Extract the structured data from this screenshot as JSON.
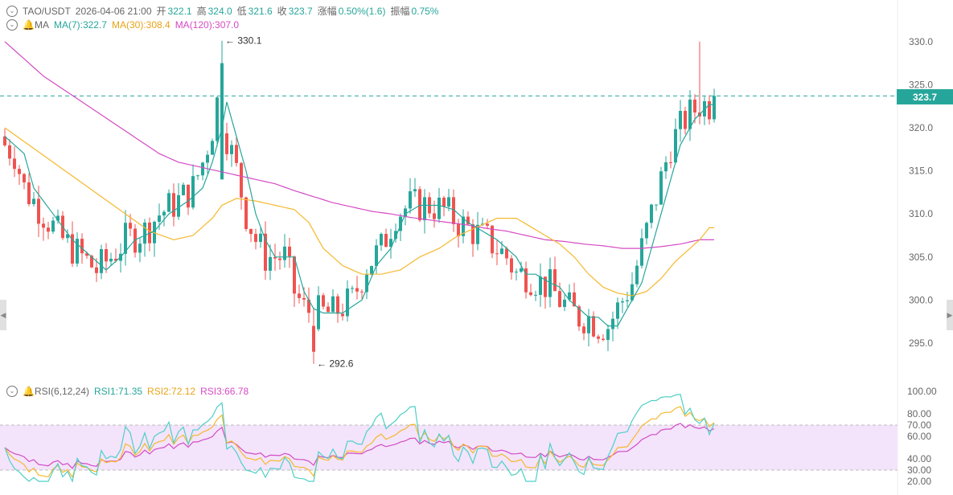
{
  "header": {
    "pair": "TAO/USDT",
    "datetime": "2026-04-06 21:00",
    "open_label": "开",
    "open": "322.1",
    "high_label": "高",
    "high": "324.0",
    "low_label": "低",
    "low": "321.6",
    "close_label": "收",
    "close": "323.7",
    "change_label": "涨幅",
    "change": "0.50%(1.6)",
    "amp_label": "振幅",
    "amp": "0.75%"
  },
  "ma_legend": {
    "label": "MA",
    "ma7": "MA(7):322.7",
    "ma30": "MA(30):308.4",
    "ma120": "MA(120):307.0"
  },
  "rsi_legend": {
    "label": "RSI(6,12,24)",
    "rsi1": "RSI1:71.35",
    "rsi2": "RSI2:72.12",
    "rsi3": "RSI3:66.78"
  },
  "last_price": "323.7",
  "colors": {
    "up": "#26a69a",
    "down": "#ef5350",
    "ma7": "#26a69a",
    "ma30": "#f5b82e",
    "ma120": "#d54ac4",
    "rsi_band": "#f3e4fb"
  },
  "chart_data": [
    {
      "type": "candlestick",
      "y_ticks": [
        "295.0",
        "300.0",
        "305.0",
        "310.0",
        "315.0",
        "320.0",
        "325.0",
        "330.0"
      ],
      "ylim": [
        291,
        332
      ],
      "high_marker": "330.1",
      "low_marker": "292.6",
      "ma_knots": {
        "ma7": [
          [
            0,
            319
          ],
          [
            4,
            317
          ],
          [
            6,
            313
          ],
          [
            10,
            310
          ],
          [
            14,
            307
          ],
          [
            18,
            305
          ],
          [
            21,
            303.5
          ],
          [
            24,
            305
          ],
          [
            27,
            307
          ],
          [
            31,
            308
          ],
          [
            34,
            310
          ],
          [
            38,
            311.5
          ],
          [
            41,
            313
          ],
          [
            43,
            316
          ],
          [
            45,
            320
          ],
          [
            46,
            323
          ],
          [
            48,
            319
          ],
          [
            50,
            315
          ],
          [
            52,
            310
          ],
          [
            54,
            307
          ],
          [
            56,
            305
          ],
          [
            58,
            305
          ],
          [
            60,
            305
          ],
          [
            62,
            301
          ],
          [
            64,
            299
          ],
          [
            66,
            298.5
          ],
          [
            70,
            298.5
          ],
          [
            74,
            300
          ],
          [
            77,
            304
          ],
          [
            80,
            306
          ],
          [
            83,
            310
          ],
          [
            86,
            311
          ],
          [
            90,
            311
          ],
          [
            93,
            310.5
          ],
          [
            96,
            309
          ],
          [
            99,
            308
          ],
          [
            102,
            307
          ],
          [
            104,
            306
          ],
          [
            106,
            305
          ],
          [
            108,
            303
          ],
          [
            110,
            303
          ],
          [
            113,
            302
          ],
          [
            115,
            301.5
          ],
          [
            117,
            300
          ],
          [
            119,
            299
          ],
          [
            121,
            298
          ],
          [
            123,
            298
          ],
          [
            125,
            297
          ],
          [
            127,
            297
          ],
          [
            129,
            299
          ],
          [
            132,
            302
          ],
          [
            134,
            306
          ],
          [
            136,
            310
          ],
          [
            138,
            314
          ],
          [
            140,
            318
          ],
          [
            143,
            321
          ],
          [
            146,
            322.7
          ]
        ],
        "ma30": [
          [
            0,
            320
          ],
          [
            5,
            318
          ],
          [
            10,
            316
          ],
          [
            15,
            314
          ],
          [
            20,
            312
          ],
          [
            25,
            310
          ],
          [
            30,
            308
          ],
          [
            35,
            307
          ],
          [
            39,
            307.5
          ],
          [
            43,
            309.5
          ],
          [
            45,
            311
          ],
          [
            48,
            311.8
          ],
          [
            52,
            311.5
          ],
          [
            56,
            311
          ],
          [
            60,
            310.5
          ],
          [
            63,
            309
          ],
          [
            66,
            306
          ],
          [
            70,
            304
          ],
          [
            74,
            303
          ],
          [
            78,
            303
          ],
          [
            82,
            303.5
          ],
          [
            86,
            305
          ],
          [
            90,
            306
          ],
          [
            94,
            307.5
          ],
          [
            98,
            308.5
          ],
          [
            102,
            309.5
          ],
          [
            106,
            309.5
          ],
          [
            109,
            308.5
          ],
          [
            112,
            307.5
          ],
          [
            115,
            306.5
          ],
          [
            118,
            305
          ],
          [
            121,
            303
          ],
          [
            124,
            301.5
          ],
          [
            127,
            300.8
          ],
          [
            130,
            300.5
          ],
          [
            133,
            301
          ],
          [
            136,
            302.5
          ],
          [
            139,
            304.5
          ],
          [
            142,
            306
          ],
          [
            144,
            307
          ],
          [
            146,
            308.4
          ]
        ],
        "ma120": [
          [
            0,
            330
          ],
          [
            4,
            328
          ],
          [
            8,
            326
          ],
          [
            12,
            324.5
          ],
          [
            16,
            323
          ],
          [
            20,
            321.5
          ],
          [
            24,
            320
          ],
          [
            28,
            318.5
          ],
          [
            32,
            317
          ],
          [
            36,
            316
          ],
          [
            40,
            315.5
          ],
          [
            44,
            315
          ],
          [
            48,
            314.5
          ],
          [
            52,
            314
          ],
          [
            56,
            313.5
          ],
          [
            60,
            312.7
          ],
          [
            64,
            312
          ],
          [
            68,
            311.3
          ],
          [
            72,
            310.8
          ],
          [
            76,
            310.3
          ],
          [
            80,
            310
          ],
          [
            84,
            309.6
          ],
          [
            88,
            309.3
          ],
          [
            92,
            309
          ],
          [
            96,
            308.7
          ],
          [
            100,
            308.3
          ],
          [
            104,
            308
          ],
          [
            108,
            307.5
          ],
          [
            112,
            307
          ],
          [
            116,
            306.8
          ],
          [
            120,
            306.5
          ],
          [
            124,
            306.3
          ],
          [
            128,
            306
          ],
          [
            132,
            306
          ],
          [
            136,
            306.2
          ],
          [
            140,
            306.5
          ],
          [
            144,
            307
          ],
          [
            146,
            307.0
          ]
        ]
      }
    },
    {
      "type": "line",
      "title": "RSI(6,12,24)",
      "y_ticks": [
        "20.00",
        "30.00",
        "40.00",
        "60.00",
        "70.00",
        "80.00",
        "100.00"
      ],
      "ylim": [
        18,
        102
      ],
      "band": [
        30,
        70
      ],
      "series": [
        {
          "name": "RSI1",
          "last": 71.35
        },
        {
          "name": "RSI2",
          "last": 72.12
        },
        {
          "name": "RSI3",
          "last": 66.78
        }
      ]
    }
  ]
}
